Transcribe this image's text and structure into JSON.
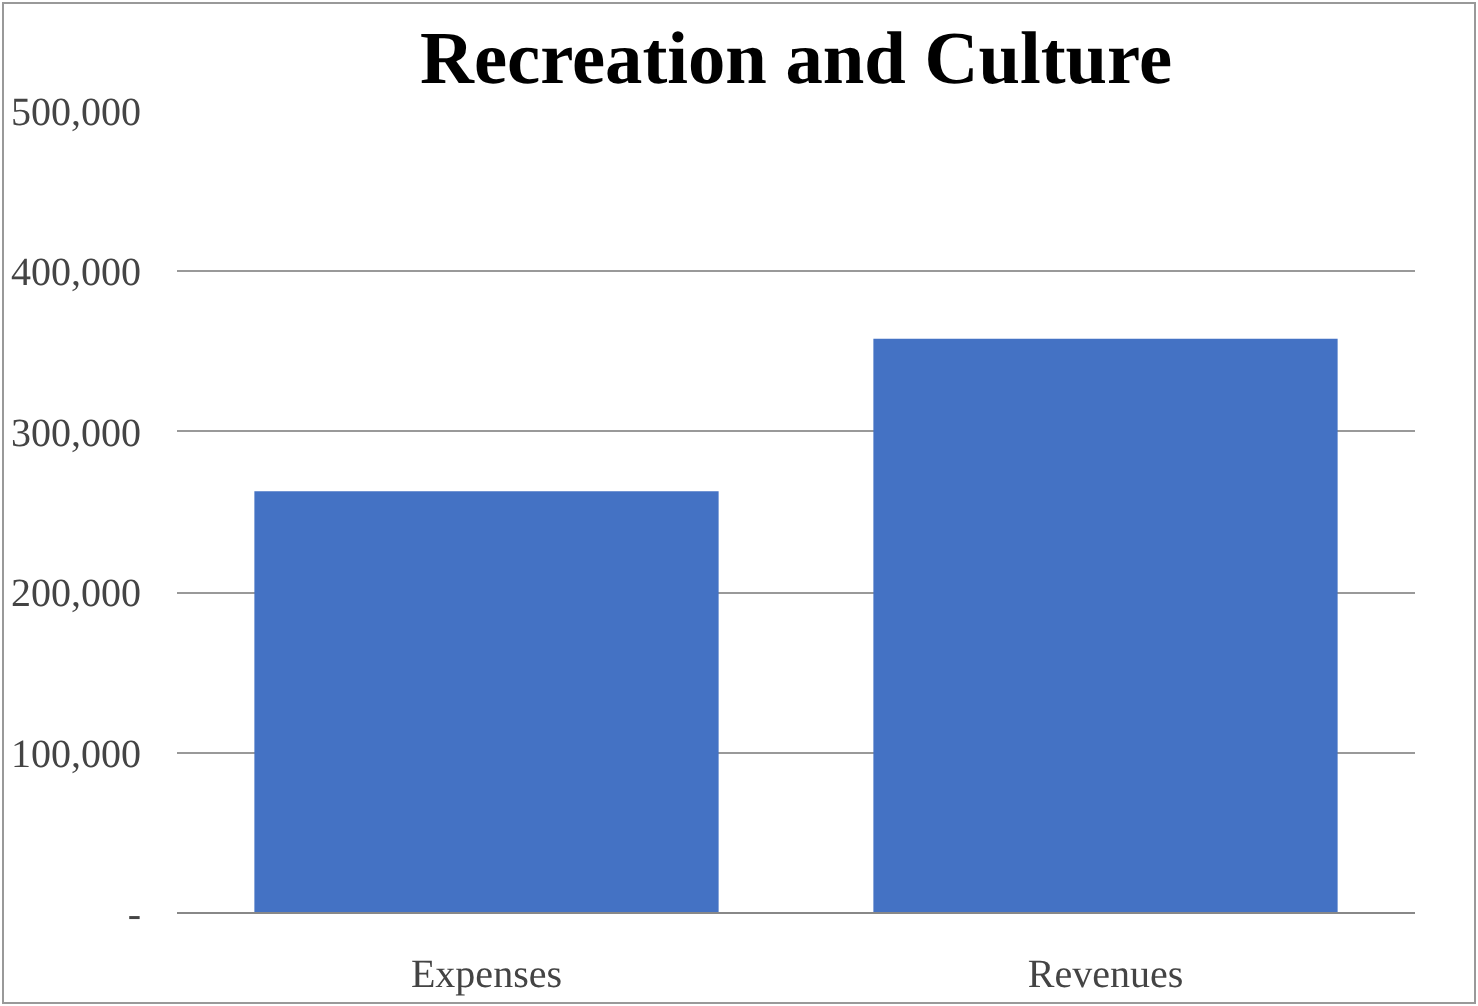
{
  "chart_data": {
    "type": "bar",
    "title": "Recreation and Culture",
    "categories": [
      "Expenses",
      "Revenues"
    ],
    "values": [
      263000,
      358000
    ],
    "color": "#4472c4",
    "ylim": [
      0,
      500000
    ],
    "yticks": [
      {
        "value": 0,
        "label": "-"
      },
      {
        "value": 100000,
        "label": "100,000"
      },
      {
        "value": 200000,
        "label": "200,000"
      },
      {
        "value": 300000,
        "label": "300,000"
      },
      {
        "value": 400000,
        "label": "400,000"
      },
      {
        "value": 500000,
        "label": "500,000"
      }
    ],
    "grid": "y"
  }
}
